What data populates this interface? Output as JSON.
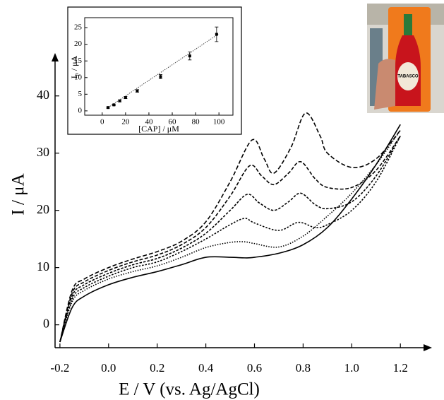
{
  "chart_data": [
    {
      "type": "line",
      "x_label": "E / V (vs. Ag/AgCl)",
      "y_label": "I / μA",
      "xlim": [
        -0.22,
        1.33
      ],
      "ylim": [
        -4,
        47.5
      ],
      "xticks": [
        {
          "value": -0.2,
          "label": "-0.2"
        },
        {
          "value": 0,
          "label": "0.0"
        },
        {
          "value": 0.2,
          "label": "0.2"
        },
        {
          "value": 0.4,
          "label": "0.4"
        },
        {
          "value": 0.6,
          "label": "0.6"
        },
        {
          "value": 0.8,
          "label": "0.8"
        },
        {
          "value": 1.0,
          "label": "1.0"
        },
        {
          "value": 1.2,
          "label": "1.2"
        }
      ],
      "yticks": [
        0,
        10,
        20,
        30,
        40
      ],
      "series": [
        {
          "color": "#000000",
          "dash": "none",
          "x": [
            -0.2,
            -0.15,
            -0.1,
            0,
            0.1,
            0.2,
            0.3,
            0.4,
            0.5,
            0.56,
            0.6,
            0.7,
            0.8,
            0.9,
            1.0,
            1.1,
            1.2
          ],
          "values": [
            -3,
            3,
            5,
            7,
            8.3,
            9.3,
            10.5,
            11.8,
            11.8,
            11.7,
            11.8,
            12.5,
            14,
            17,
            22,
            28,
            35
          ]
        },
        {
          "color": "#000000",
          "dash": "1.5 2",
          "x": [
            -0.2,
            -0.15,
            -0.1,
            0,
            0.1,
            0.2,
            0.3,
            0.4,
            0.5,
            0.56,
            0.6,
            0.7,
            0.8,
            0.9,
            1.0,
            1.1,
            1.2
          ],
          "values": [
            -3,
            4,
            6,
            8,
            9.3,
            10.3,
            11.8,
            13.5,
            14.4,
            14.5,
            14.2,
            13.6,
            15.5,
            19,
            23,
            28,
            34
          ]
        },
        {
          "color": "#000000",
          "dash": "2.5 2",
          "x": [
            -0.2,
            -0.15,
            -0.1,
            0,
            0.1,
            0.2,
            0.3,
            0.4,
            0.5,
            0.56,
            0.6,
            0.7,
            0.78,
            0.85,
            0.9,
            1.0,
            1.1,
            1.2
          ],
          "values": [
            -3,
            4.5,
            6.5,
            8.5,
            10,
            11,
            12.8,
            15,
            17.5,
            18.6,
            17.8,
            16.5,
            17.9,
            17,
            17.5,
            20,
            25,
            33
          ]
        },
        {
          "color": "#000000",
          "dash": "3.5 2",
          "x": [
            -0.2,
            -0.15,
            -0.1,
            0,
            0.1,
            0.2,
            0.3,
            0.4,
            0.5,
            0.57,
            0.62,
            0.68,
            0.74,
            0.79,
            0.85,
            0.9,
            1.0,
            1.1,
            1.2
          ],
          "values": [
            -3,
            5,
            7,
            9,
            10.5,
            11.6,
            13.4,
            16,
            20,
            22.8,
            21.3,
            20,
            21.5,
            23,
            21,
            20.3,
            21.5,
            26,
            33
          ]
        },
        {
          "color": "#000000",
          "dash": "5 2.5",
          "x": [
            -0.2,
            -0.15,
            -0.1,
            0,
            0.1,
            0.2,
            0.3,
            0.4,
            0.5,
            0.58,
            0.63,
            0.68,
            0.74,
            0.79,
            0.85,
            0.9,
            1.0,
            1.1,
            1.2
          ],
          "values": [
            -3,
            5.5,
            7.5,
            9.5,
            11,
            12.2,
            14,
            17,
            22.5,
            27.8,
            26,
            24.5,
            26.5,
            28.5,
            25.5,
            24,
            24,
            27,
            33
          ]
        },
        {
          "color": "#000000",
          "dash": "6 3",
          "x": [
            -0.2,
            -0.15,
            -0.1,
            0,
            0.1,
            0.2,
            0.3,
            0.4,
            0.5,
            0.59,
            0.64,
            0.68,
            0.75,
            0.81,
            0.87,
            0.9,
            1.0,
            1.1,
            1.2
          ],
          "values": [
            -3,
            6,
            8,
            10,
            11.5,
            12.8,
            14.6,
            18,
            25,
            32.3,
            29,
            26.5,
            31,
            37,
            33,
            30,
            27.5,
            29,
            34
          ]
        }
      ]
    },
    {
      "type": "scatter",
      "x_label": "[CAP] / μM",
      "y_label_main": "I",
      "y_label_sub": "p",
      "y_label_unit": " / μA",
      "xlim": [
        -15,
        112
      ],
      "ylim": [
        -1.3,
        28
      ],
      "xticks": [
        0,
        20,
        40,
        60,
        80,
        100
      ],
      "yticks": [
        0,
        5,
        10,
        15,
        20,
        25
      ],
      "fit": {
        "x": [
          5,
          100
        ],
        "values": [
          1,
          23.2
        ]
      },
      "x": [
        5,
        10,
        15,
        20,
        30,
        50,
        75,
        98
      ],
      "values": [
        1,
        1.8,
        3,
        4,
        6,
        10.3,
        16.5,
        23
      ],
      "errors": [
        0.2,
        0.2,
        0.3,
        0.3,
        0.4,
        0.6,
        1.2,
        2.2
      ]
    }
  ],
  "photo": {
    "label": "TABASCO"
  }
}
